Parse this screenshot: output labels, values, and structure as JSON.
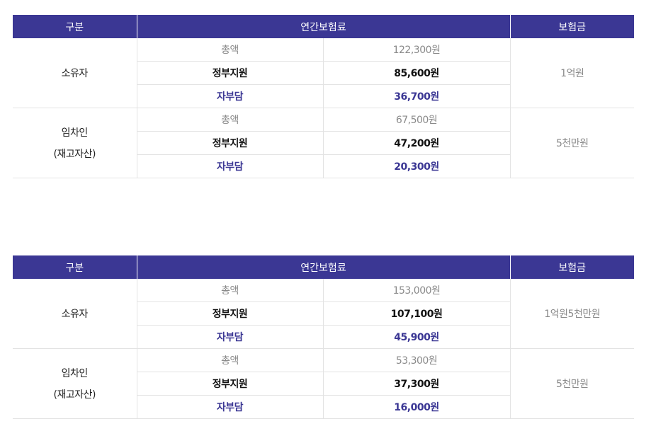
{
  "tables": [
    {
      "headers": {
        "category": "구분",
        "premium": "연간보험료",
        "coverage": "보험금"
      },
      "rows": [
        {
          "category_line1": "소유자",
          "category_line2": "",
          "total_label": "총액",
          "total_value": "122,300원",
          "gov_label": "정부지원",
          "gov_value": "85,600원",
          "self_label": "자부담",
          "self_value": "36,700원",
          "coverage": "1억원"
        },
        {
          "category_line1": "임차인",
          "category_line2": "(재고자산)",
          "total_label": "총액",
          "total_value": "67,500원",
          "gov_label": "정부지원",
          "gov_value": "47,200원",
          "self_label": "자부담",
          "self_value": "20,300원",
          "coverage": "5천만원"
        }
      ]
    },
    {
      "headers": {
        "category": "구분",
        "premium": "연간보험료",
        "coverage": "보험금"
      },
      "rows": [
        {
          "category_line1": "소유자",
          "category_line2": "",
          "total_label": "총액",
          "total_value": "153,000원",
          "gov_label": "정부지원",
          "gov_value": "107,100원",
          "self_label": "자부담",
          "self_value": "45,900원",
          "coverage": "1억원5천만원"
        },
        {
          "category_line1": "임차인",
          "category_line2": "(재고자산)",
          "total_label": "총액",
          "total_value": "53,300원",
          "gov_label": "정부지원",
          "gov_value": "37,300원",
          "self_label": "자부담",
          "self_value": "16,000원",
          "coverage": "5천만원"
        }
      ]
    }
  ],
  "colors": {
    "header_bg": "#3b3794",
    "self_text": "#3b3794",
    "border": "#e3e3e3"
  }
}
